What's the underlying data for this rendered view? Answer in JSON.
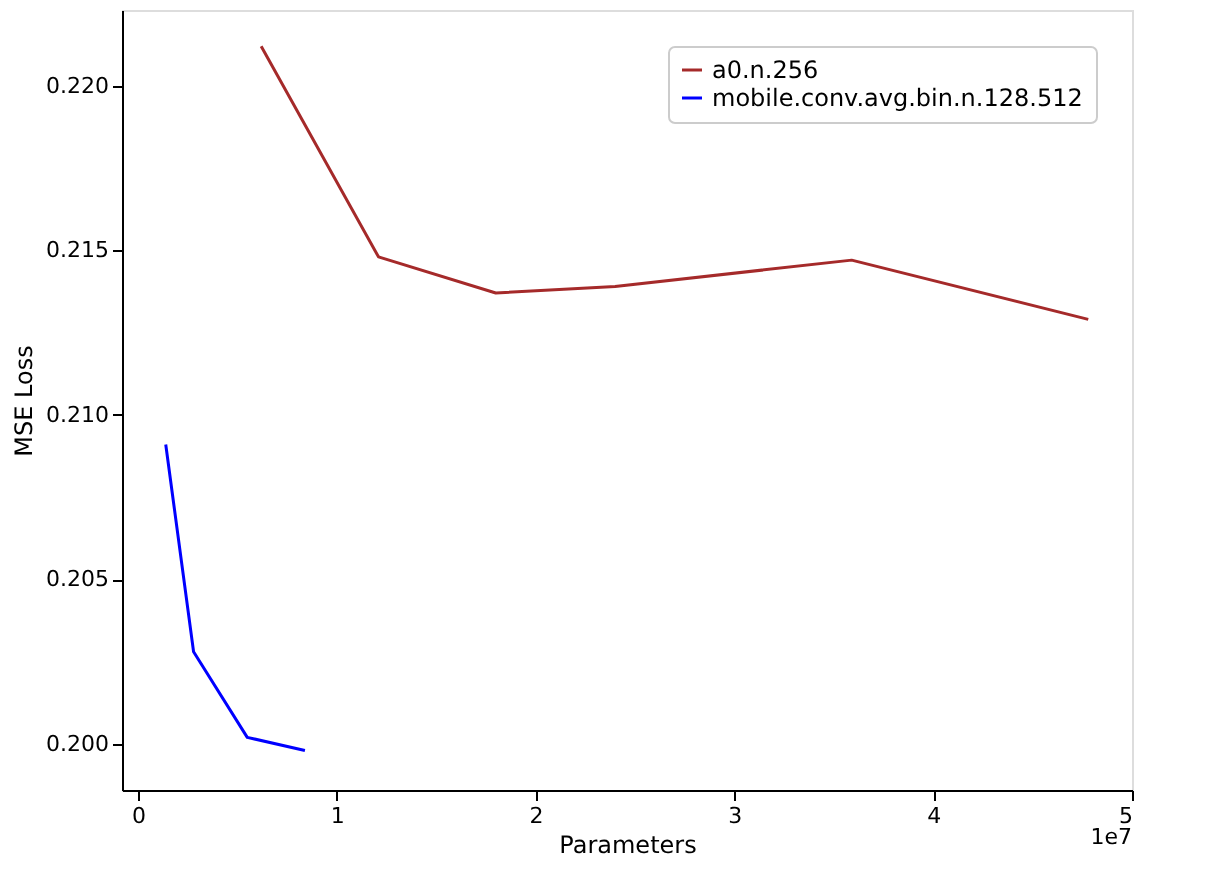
{
  "chart_data": {
    "type": "line",
    "xlabel": "Parameters",
    "ylabel": "MSE Loss",
    "xlim": [
      -0.08,
      5
    ],
    "xticks": [
      0,
      1,
      2,
      3,
      4,
      5
    ],
    "ylim": [
      0.1986,
      0.2223
    ],
    "yticks": [
      {
        "value": 0.2,
        "label": "0.200"
      },
      {
        "value": 0.205,
        "label": "0.205"
      },
      {
        "value": 0.21,
        "label": "0.210"
      },
      {
        "value": 0.215,
        "label": "0.215"
      },
      {
        "value": 0.22,
        "label": "0.220"
      }
    ],
    "annotations": [
      "1e7"
    ],
    "legend": "top right",
    "grid": false,
    "marker": "none",
    "line_style": "solid",
    "series": [
      {
        "name": "a0.n.256",
        "color": "#a52a2a",
        "x": [
          0.62,
          1.21,
          1.8,
          2.4,
          3.59,
          4.78
        ],
        "values": [
          0.2212,
          0.2148,
          0.2137,
          0.2139,
          0.2147,
          0.2129
        ]
      },
      {
        "name": "mobile.conv.avg.bin.n.128.512",
        "color": "#0000ff",
        "x": [
          0.14,
          0.28,
          0.55,
          0.84
        ],
        "values": [
          0.2091,
          0.2028,
          0.2002,
          0.1998
        ]
      }
    ]
  }
}
